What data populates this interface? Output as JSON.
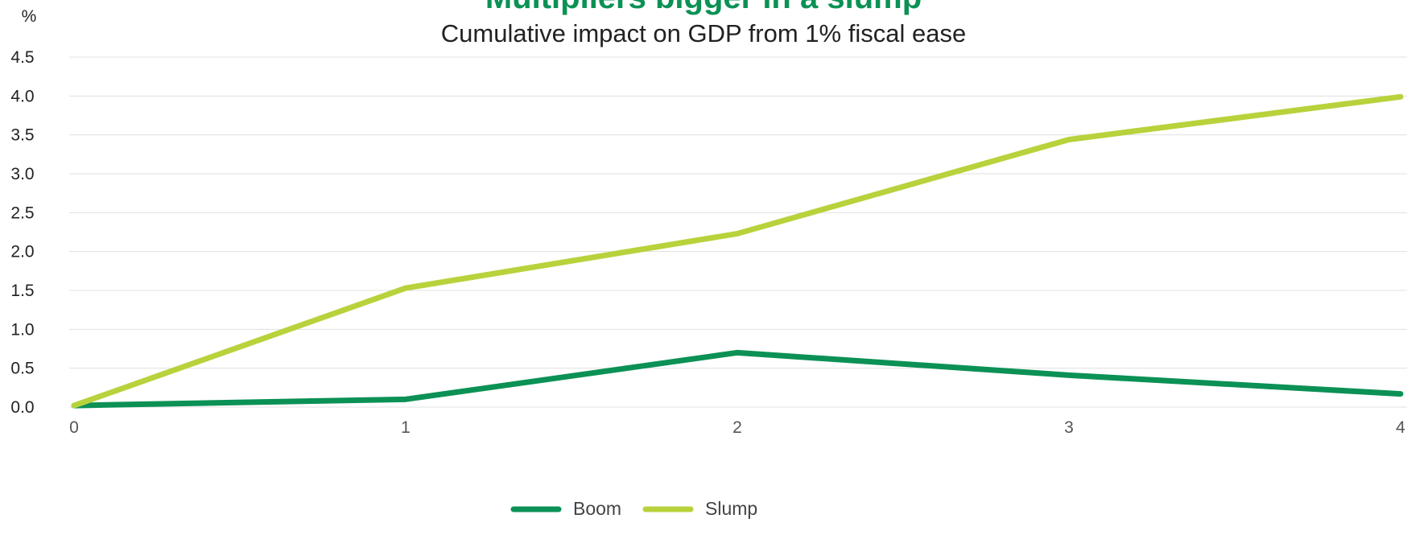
{
  "chart_data": {
    "type": "line",
    "title": "Multipliers bigger in a slump",
    "subtitle": "Cumulative impact on GDP from 1% fiscal ease",
    "yunit": "%",
    "xlabel": "",
    "ylabel": "",
    "x": [
      0,
      1,
      2,
      3,
      4
    ],
    "x_tick_labels": [
      "0",
      "1",
      "2",
      "3",
      "4"
    ],
    "ylim": [
      0,
      4.5
    ],
    "y_ticks": [
      0,
      0.5,
      1.0,
      1.5,
      2.0,
      2.5,
      3.0,
      3.5,
      4.0,
      4.5
    ],
    "y_tick_labels": [
      "0.0",
      "0.5",
      "1.0",
      "1.5",
      "2.0",
      "2.5",
      "3.0",
      "3.5",
      "4.0",
      "4.5"
    ],
    "grid": true,
    "legend_position": "bottom-center",
    "series": [
      {
        "name": "Boom",
        "values": [
          0.02,
          0.1,
          0.7,
          0.41,
          0.17
        ],
        "color": "#0b9155"
      },
      {
        "name": "Slump",
        "values": [
          0.02,
          1.53,
          2.23,
          3.44,
          3.99
        ],
        "color": "#b8d23c"
      }
    ],
    "title_color": "#0b9155"
  }
}
